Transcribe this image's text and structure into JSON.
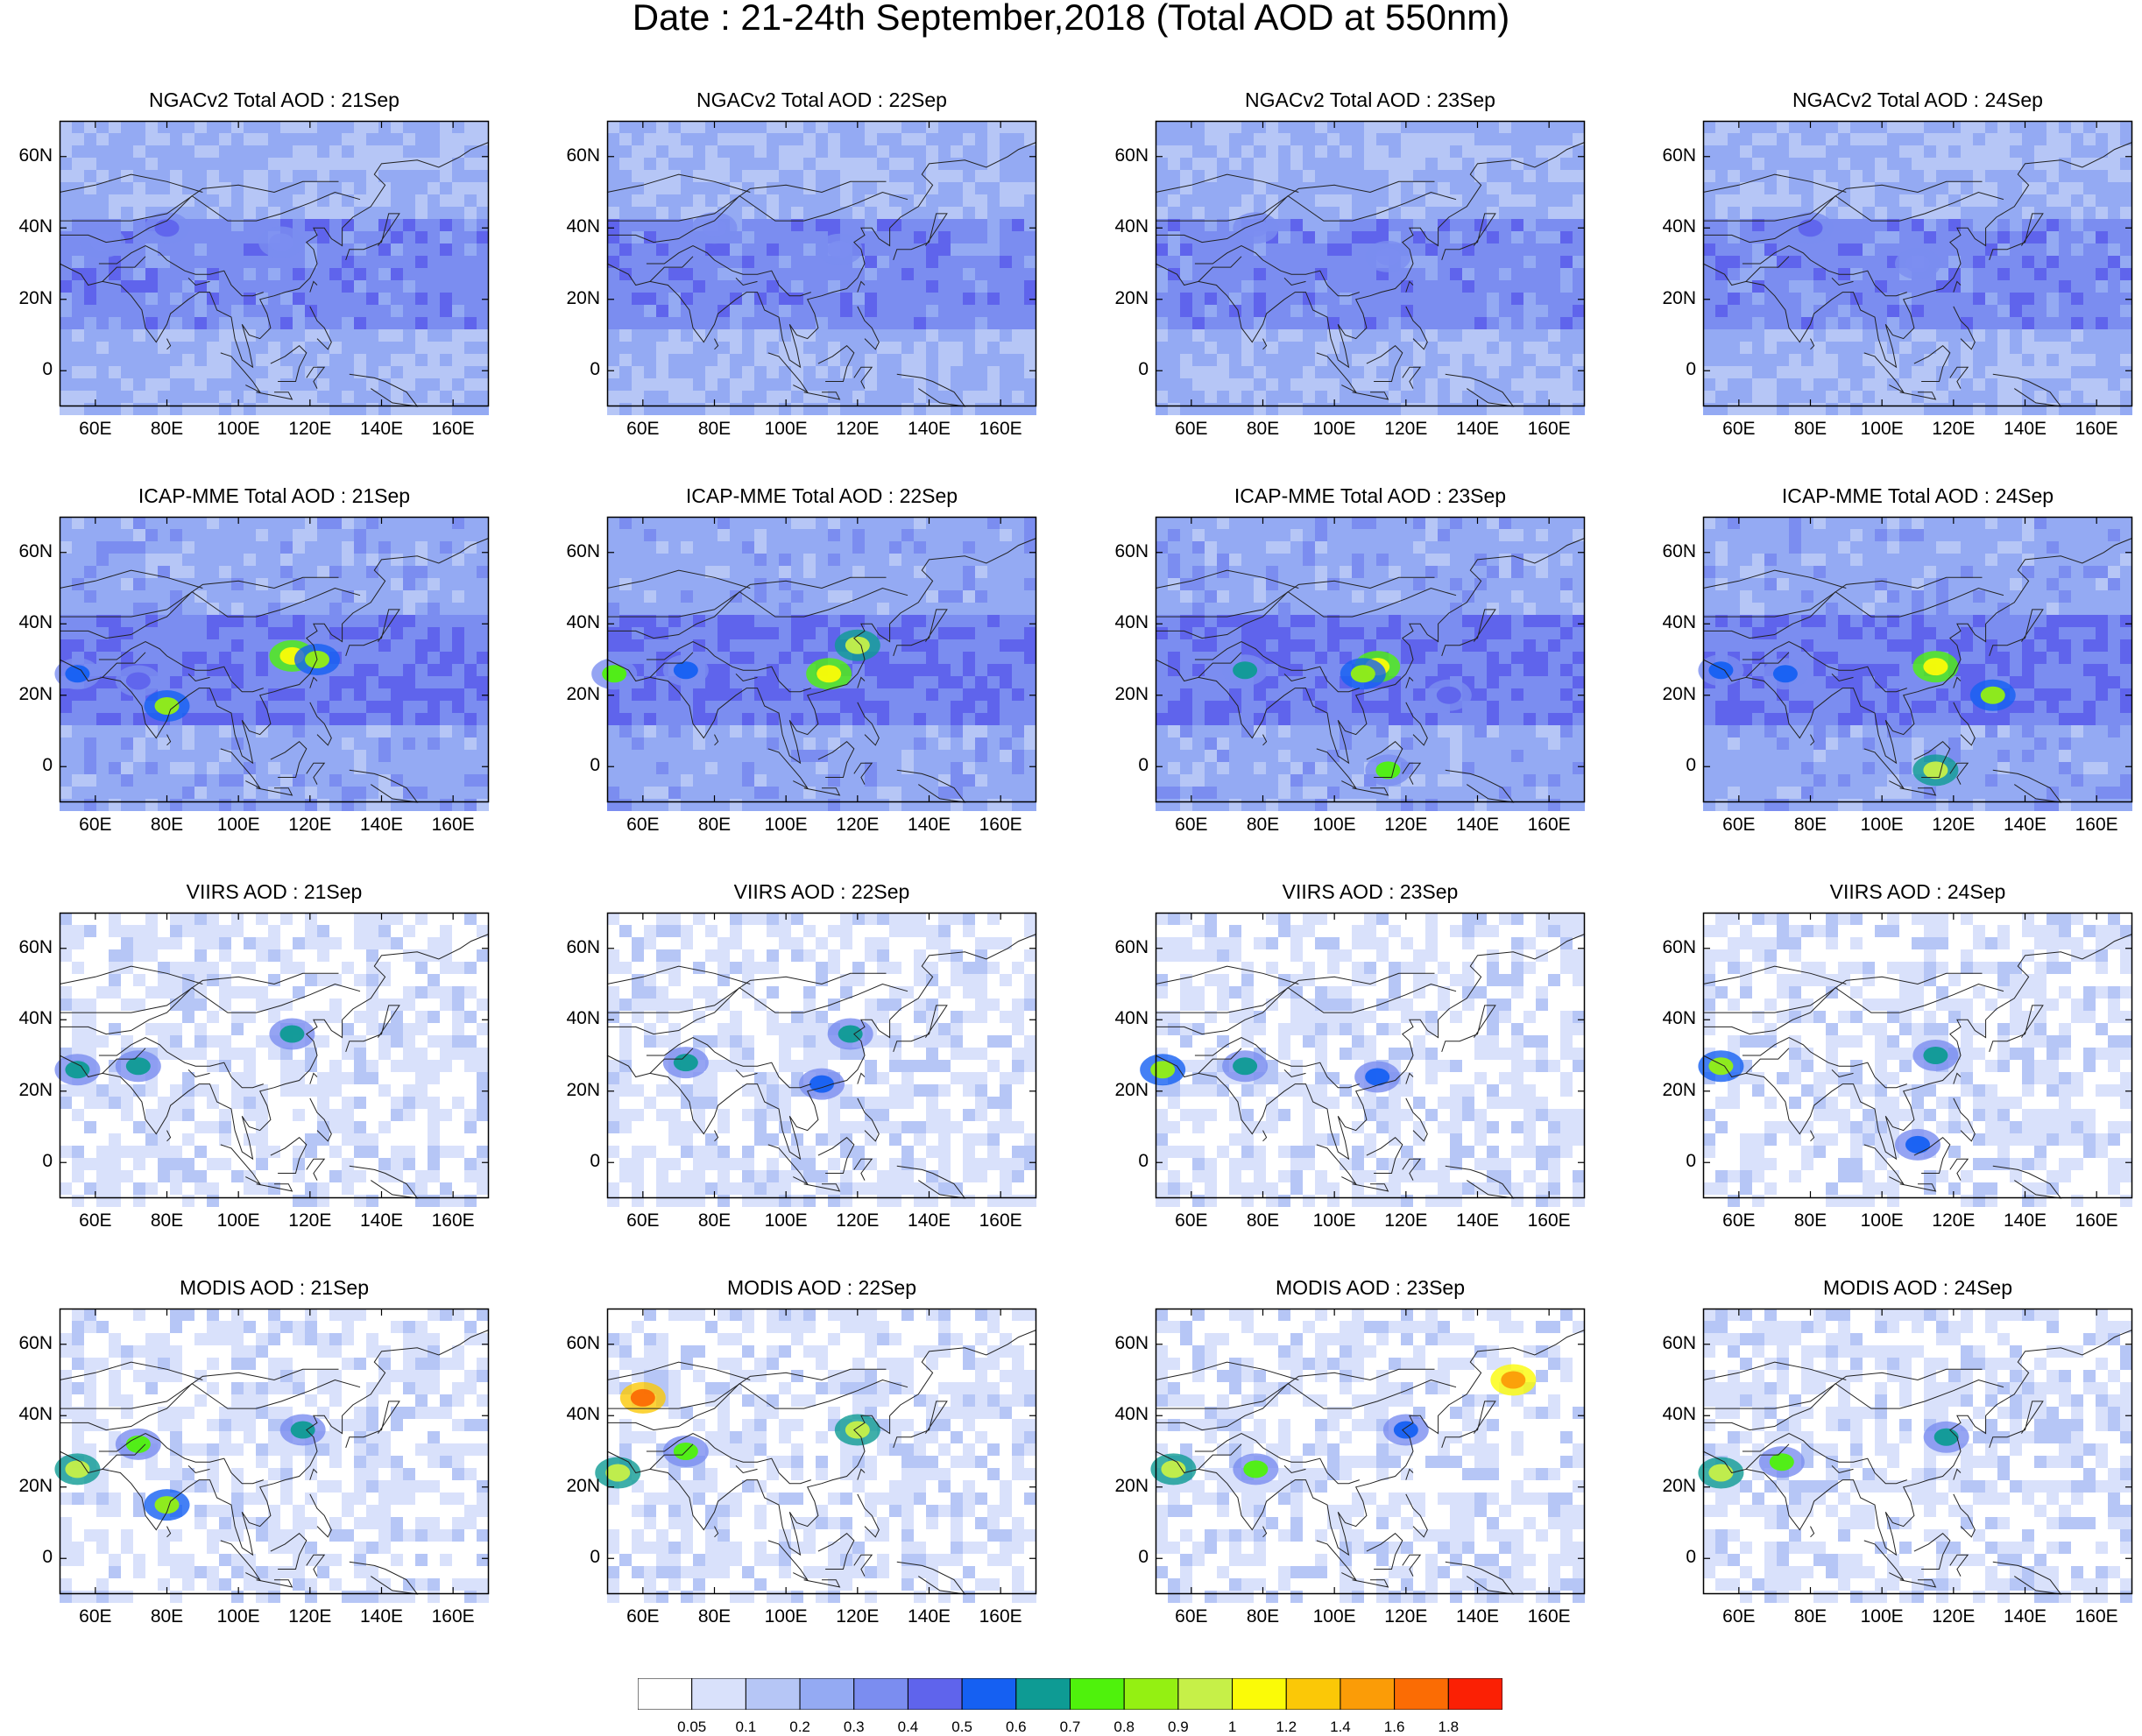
{
  "title": "Date : 21-24th September,2018 (Total AOD at 550nm)",
  "chart_data": {
    "type": "heatmap",
    "title": "Date : 21-24th September,2018 (Total AOD at 550nm)",
    "grid": {
      "rows": [
        "NGACv2 Total AOD",
        "ICAP-MME Total AOD",
        "VIIRS AOD",
        "MODIS AOD"
      ],
      "columns": [
        "21Sep",
        "22Sep",
        "23Sep",
        "24Sep"
      ]
    },
    "panels": [
      {
        "title": "NGACv2 Total AOD : 21Sep"
      },
      {
        "title": "NGACv2 Total AOD : 22Sep"
      },
      {
        "title": "NGACv2 Total AOD : 23Sep"
      },
      {
        "title": "NGACv2 Total AOD : 24Sep"
      },
      {
        "title": "ICAP-MME Total AOD : 21Sep"
      },
      {
        "title": "ICAP-MME Total AOD : 22Sep"
      },
      {
        "title": "ICAP-MME Total AOD : 23Sep"
      },
      {
        "title": "ICAP-MME Total AOD : 24Sep"
      },
      {
        "title": "VIIRS AOD : 21Sep"
      },
      {
        "title": "VIIRS AOD : 22Sep"
      },
      {
        "title": "VIIRS AOD : 23Sep"
      },
      {
        "title": "VIIRS AOD : 24Sep"
      },
      {
        "title": "MODIS AOD : 21Sep"
      },
      {
        "title": "MODIS AOD : 22Sep"
      },
      {
        "title": "MODIS AOD : 23Sep"
      },
      {
        "title": "MODIS AOD : 24Sep"
      }
    ],
    "xlim": [
      50,
      170
    ],
    "ylim": [
      -10,
      70
    ],
    "x_ticks": [
      {
        "value": 60,
        "label": "60E"
      },
      {
        "value": 80,
        "label": "80E"
      },
      {
        "value": 100,
        "label": "100E"
      },
      {
        "value": 120,
        "label": "120E"
      },
      {
        "value": 140,
        "label": "140E"
      },
      {
        "value": 160,
        "label": "160E"
      }
    ],
    "y_ticks": [
      {
        "value": 60,
        "label": "60N"
      },
      {
        "value": 40,
        "label": "40N"
      },
      {
        "value": 20,
        "label": "20N"
      },
      {
        "value": 0,
        "label": "0"
      }
    ],
    "colorbar": {
      "levels": [
        "0.05",
        "0.1",
        "0.2",
        "0.3",
        "0.4",
        "0.5",
        "0.6",
        "0.7",
        "0.8",
        "0.9",
        "1",
        "1.2",
        "1.4",
        "1.6",
        "1.8"
      ],
      "colors": [
        "#ffffff",
        "#d9e1fb",
        "#b6c6f6",
        "#94aaf3",
        "#7b8df0",
        "#5f64ec",
        "#1560f2",
        "#0e9b94",
        "#4ff20c",
        "#94f012",
        "#c6f048",
        "#fbfb07",
        "#fbc807",
        "#fb9c07",
        "#fb6c04",
        "#fb2004"
      ]
    },
    "hotspots": [
      {
        "panel": 0,
        "lon": 80,
        "lat": 40,
        "v": 0.4
      },
      {
        "panel": 0,
        "lon": 112,
        "lat": 36,
        "v": 0.3
      },
      {
        "panel": 0,
        "lon": 62,
        "lat": 36,
        "v": 0.3
      },
      {
        "panel": 1,
        "lon": 80,
        "lat": 40,
        "v": 0.3
      },
      {
        "panel": 1,
        "lon": 115,
        "lat": 34,
        "v": 0.3
      },
      {
        "panel": 2,
        "lon": 78,
        "lat": 40,
        "v": 0.3
      },
      {
        "panel": 2,
        "lon": 115,
        "lat": 32,
        "v": 0.3
      },
      {
        "panel": 3,
        "lon": 80,
        "lat": 40,
        "v": 0.4
      },
      {
        "panel": 3,
        "lon": 110,
        "lat": 30,
        "v": 0.3
      },
      {
        "panel": 4,
        "lon": 115,
        "lat": 31,
        "v": 1.0
      },
      {
        "panel": 4,
        "lon": 122,
        "lat": 30,
        "v": 0.8
      },
      {
        "panel": 4,
        "lon": 80,
        "lat": 17,
        "v": 0.8
      },
      {
        "panel": 4,
        "lon": 55,
        "lat": 26,
        "v": 0.5
      },
      {
        "panel": 4,
        "lon": 72,
        "lat": 24,
        "v": 0.4
      },
      {
        "panel": 5,
        "lon": 112,
        "lat": 26,
        "v": 1.0
      },
      {
        "panel": 5,
        "lon": 120,
        "lat": 34,
        "v": 0.9
      },
      {
        "panel": 5,
        "lon": 52,
        "lat": 26,
        "v": 0.7
      },
      {
        "panel": 5,
        "lon": 72,
        "lat": 27,
        "v": 0.5
      },
      {
        "panel": 6,
        "lon": 112,
        "lat": 28,
        "v": 1.0
      },
      {
        "panel": 6,
        "lon": 108,
        "lat": 26,
        "v": 0.8
      },
      {
        "panel": 6,
        "lon": 75,
        "lat": 27,
        "v": 0.6
      },
      {
        "panel": 6,
        "lon": 115,
        "lat": -1,
        "v": 0.7
      },
      {
        "panel": 6,
        "lon": 132,
        "lat": 20,
        "v": 0.4
      },
      {
        "panel": 7,
        "lon": 115,
        "lat": 28,
        "v": 1.0
      },
      {
        "panel": 7,
        "lon": 115,
        "lat": -1,
        "v": 0.9
      },
      {
        "panel": 7,
        "lon": 131,
        "lat": 20,
        "v": 0.8
      },
      {
        "panel": 7,
        "lon": 73,
        "lat": 26,
        "v": 0.5
      },
      {
        "panel": 7,
        "lon": 55,
        "lat": 27,
        "v": 0.5
      },
      {
        "panel": 8,
        "lon": 115,
        "lat": 36,
        "v": 0.6
      },
      {
        "panel": 8,
        "lon": 72,
        "lat": 27,
        "v": 0.6
      },
      {
        "panel": 8,
        "lon": 55,
        "lat": 26,
        "v": 0.6
      },
      {
        "panel": 9,
        "lon": 118,
        "lat": 36,
        "v": 0.6
      },
      {
        "panel": 9,
        "lon": 110,
        "lat": 22,
        "v": 0.5
      },
      {
        "panel": 9,
        "lon": 72,
        "lat": 28,
        "v": 0.6
      },
      {
        "panel": 10,
        "lon": 52,
        "lat": 26,
        "v": 0.8
      },
      {
        "panel": 10,
        "lon": 75,
        "lat": 27,
        "v": 0.6
      },
      {
        "panel": 10,
        "lon": 112,
        "lat": 24,
        "v": 0.5
      },
      {
        "panel": 11,
        "lon": 55,
        "lat": 27,
        "v": 0.8
      },
      {
        "panel": 11,
        "lon": 115,
        "lat": 30,
        "v": 0.6
      },
      {
        "panel": 11,
        "lon": 110,
        "lat": 5,
        "v": 0.5
      },
      {
        "panel": 12,
        "lon": 55,
        "lat": 25,
        "v": 0.9
      },
      {
        "panel": 12,
        "lon": 72,
        "lat": 32,
        "v": 0.7
      },
      {
        "panel": 12,
        "lon": 118,
        "lat": 36,
        "v": 0.6
      },
      {
        "panel": 12,
        "lon": 80,
        "lat": 15,
        "v": 0.8
      },
      {
        "panel": 13,
        "lon": 53,
        "lat": 24,
        "v": 0.9
      },
      {
        "panel": 13,
        "lon": 72,
        "lat": 30,
        "v": 0.7
      },
      {
        "panel": 13,
        "lon": 120,
        "lat": 36,
        "v": 0.9
      },
      {
        "panel": 13,
        "lon": 60,
        "lat": 45,
        "v": 1.6
      },
      {
        "panel": 14,
        "lon": 55,
        "lat": 25,
        "v": 0.9
      },
      {
        "panel": 14,
        "lon": 78,
        "lat": 25,
        "v": 0.7
      },
      {
        "panel": 14,
        "lon": 150,
        "lat": 50,
        "v": 1.4
      },
      {
        "panel": 14,
        "lon": 120,
        "lat": 36,
        "v": 0.5
      },
      {
        "panel": 15,
        "lon": 55,
        "lat": 24,
        "v": 0.9
      },
      {
        "panel": 15,
        "lon": 72,
        "lat": 27,
        "v": 0.7
      },
      {
        "panel": 15,
        "lon": 118,
        "lat": 34,
        "v": 0.6
      }
    ]
  }
}
